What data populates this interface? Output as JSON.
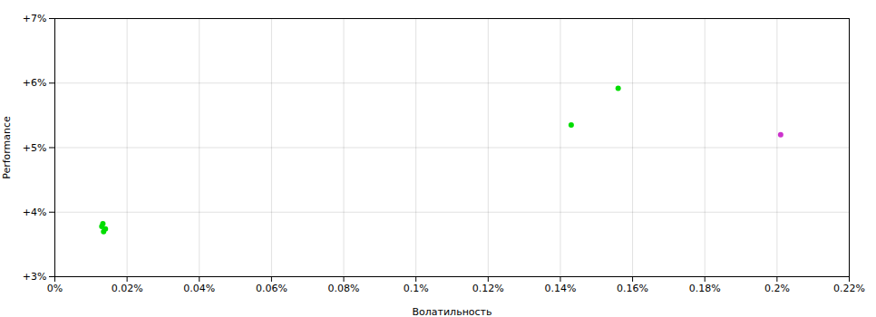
{
  "chart_data": {
    "type": "scatter",
    "xlabel": "Волатильность",
    "ylabel": "Performance",
    "x": [
      0.00013,
      0.000135,
      0.00014,
      0.000133,
      0.00143,
      0.00156,
      0.00201
    ],
    "values": [
      0.0378,
      0.037,
      0.0374,
      0.0382,
      0.0535,
      0.0592,
      0.052
    ],
    "colors": [
      "#00dd00",
      "#00dd00",
      "#00dd00",
      "#00dd00",
      "#00dd00",
      "#00dd00",
      "#cc33cc"
    ],
    "xlim": [
      0.0,
      0.0022
    ],
    "ylim": [
      0.03,
      0.07
    ],
    "xticks": [
      {
        "value": 0.0,
        "label": "0%"
      },
      {
        "value": 0.0002,
        "label": "0.02%"
      },
      {
        "value": 0.0004,
        "label": "0.04%"
      },
      {
        "value": 0.0006,
        "label": "0.06%"
      },
      {
        "value": 0.0008,
        "label": "0.08%"
      },
      {
        "value": 0.001,
        "label": "0.1%"
      },
      {
        "value": 0.0012,
        "label": "0.12%"
      },
      {
        "value": 0.0014,
        "label": "0.14%"
      },
      {
        "value": 0.0016,
        "label": "0.16%"
      },
      {
        "value": 0.0018,
        "label": "0.18%"
      },
      {
        "value": 0.002,
        "label": "0.2%"
      },
      {
        "value": 0.0022,
        "label": "0.22%"
      }
    ],
    "yticks": [
      {
        "value": 0.03,
        "label": "+3%"
      },
      {
        "value": 0.04,
        "label": "+4%"
      },
      {
        "value": 0.05,
        "label": "+5%"
      },
      {
        "value": 0.06,
        "label": "+6%"
      },
      {
        "value": 0.07,
        "label": "+7%"
      }
    ],
    "grid": true
  }
}
